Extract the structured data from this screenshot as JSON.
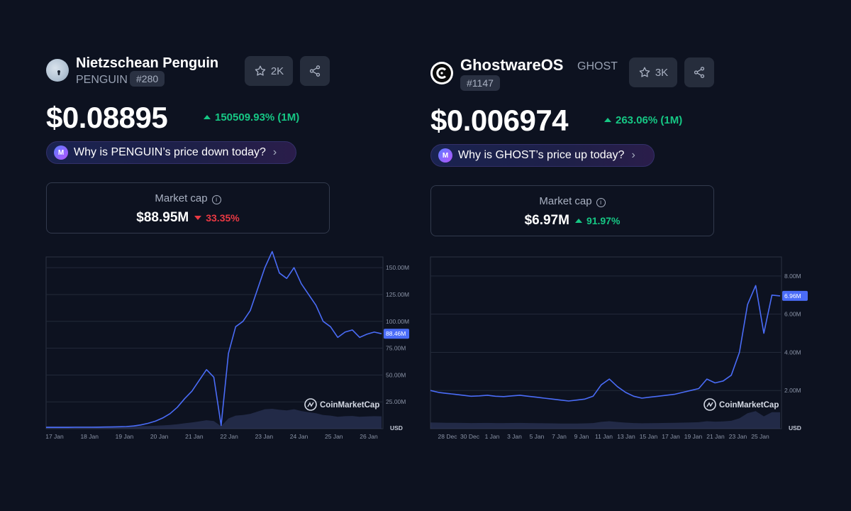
{
  "penguin": {
    "name": "Nietzschean Penguin",
    "symbol": "PENGUIN",
    "rank": "#280",
    "watchlist_count": "2K",
    "price": "$0.08895",
    "change": "150509.93% (1M)",
    "why_text": "Why is PENGUIN’s price down today?",
    "market_cap_label": "Market cap",
    "market_cap_value": "$88.95M",
    "market_cap_change": "33.35%",
    "market_cap_direction": "down",
    "chart": {
      "y_ticks": [
        "150.00M",
        "125.00M",
        "100.00M",
        "75.00M",
        "50.00M",
        "25.00M"
      ],
      "x_ticks": [
        "17 Jan",
        "18 Jan",
        "19 Jan",
        "20 Jan",
        "21 Jan",
        "22 Jan",
        "23 Jan",
        "24 Jan",
        "25 Jan",
        "26 Jan"
      ],
      "current_tag": "88.46M",
      "currency": "USD",
      "watermark": "CoinMarketCap"
    }
  },
  "ghost": {
    "name": "GhostwareOS",
    "symbol": "GHOST",
    "rank": "#1147",
    "watchlist_count": "3K",
    "price": "$0.006974",
    "change": "263.06% (1M)",
    "why_text": "Why is GHOST’s price up today?",
    "market_cap_label": "Market cap",
    "market_cap_value": "$6.97M",
    "market_cap_change": "91.97%",
    "market_cap_direction": "up",
    "chart": {
      "y_ticks": [
        "8.00M",
        "6.00M",
        "4.00M",
        "2.00M"
      ],
      "x_ticks": [
        "28 Dec",
        "30 Dec",
        "1 Jan",
        "3 Jan",
        "5 Jan",
        "7 Jan",
        "9 Jan",
        "11 Jan",
        "13 Jan",
        "15 Jan",
        "17 Jan",
        "19 Jan",
        "21 Jan",
        "23 Jan",
        "25 Jan"
      ],
      "current_tag": "6.96M",
      "currency": "USD",
      "watermark": "CoinMarketCap"
    }
  },
  "chart_data": [
    {
      "type": "line",
      "series": [
        {
          "values": [
            1.2,
            1.2,
            1.2,
            1.2,
            1.3,
            1.3,
            1.3,
            1.4,
            1.5,
            1.6,
            1.8,
            2.0,
            2.5,
            3.5,
            5,
            7,
            10,
            14,
            20,
            28,
            35,
            45,
            55,
            48,
            3,
            70,
            95,
            100,
            110,
            130,
            150,
            165,
            145,
            140,
            150,
            135,
            125,
            115,
            100,
            95,
            85,
            90,
            92,
            85,
            88,
            90,
            88.46
          ]
        }
      ],
      "x_range": [
        "17 Jan",
        "26 Jan"
      ],
      "ylim": [
        0,
        160
      ],
      "color": "#4a6cf7"
    },
    {
      "type": "line",
      "series": [
        {
          "values": [
            2.0,
            1.9,
            1.85,
            1.8,
            1.75,
            1.7,
            1.72,
            1.75,
            1.7,
            1.68,
            1.72,
            1.75,
            1.7,
            1.65,
            1.6,
            1.55,
            1.5,
            1.45,
            1.5,
            1.55,
            1.7,
            2.3,
            2.6,
            2.2,
            1.9,
            1.7,
            1.6,
            1.65,
            1.7,
            1.75,
            1.8,
            1.9,
            2.0,
            2.1,
            2.6,
            2.4,
            2.5,
            2.8,
            4.0,
            6.5,
            7.5,
            5.0,
            7.0,
            6.96
          ]
        }
      ],
      "x_range": [
        "27 Dec",
        "26 Jan"
      ],
      "ylim": [
        0,
        9
      ],
      "color": "#4a6cf7"
    }
  ]
}
